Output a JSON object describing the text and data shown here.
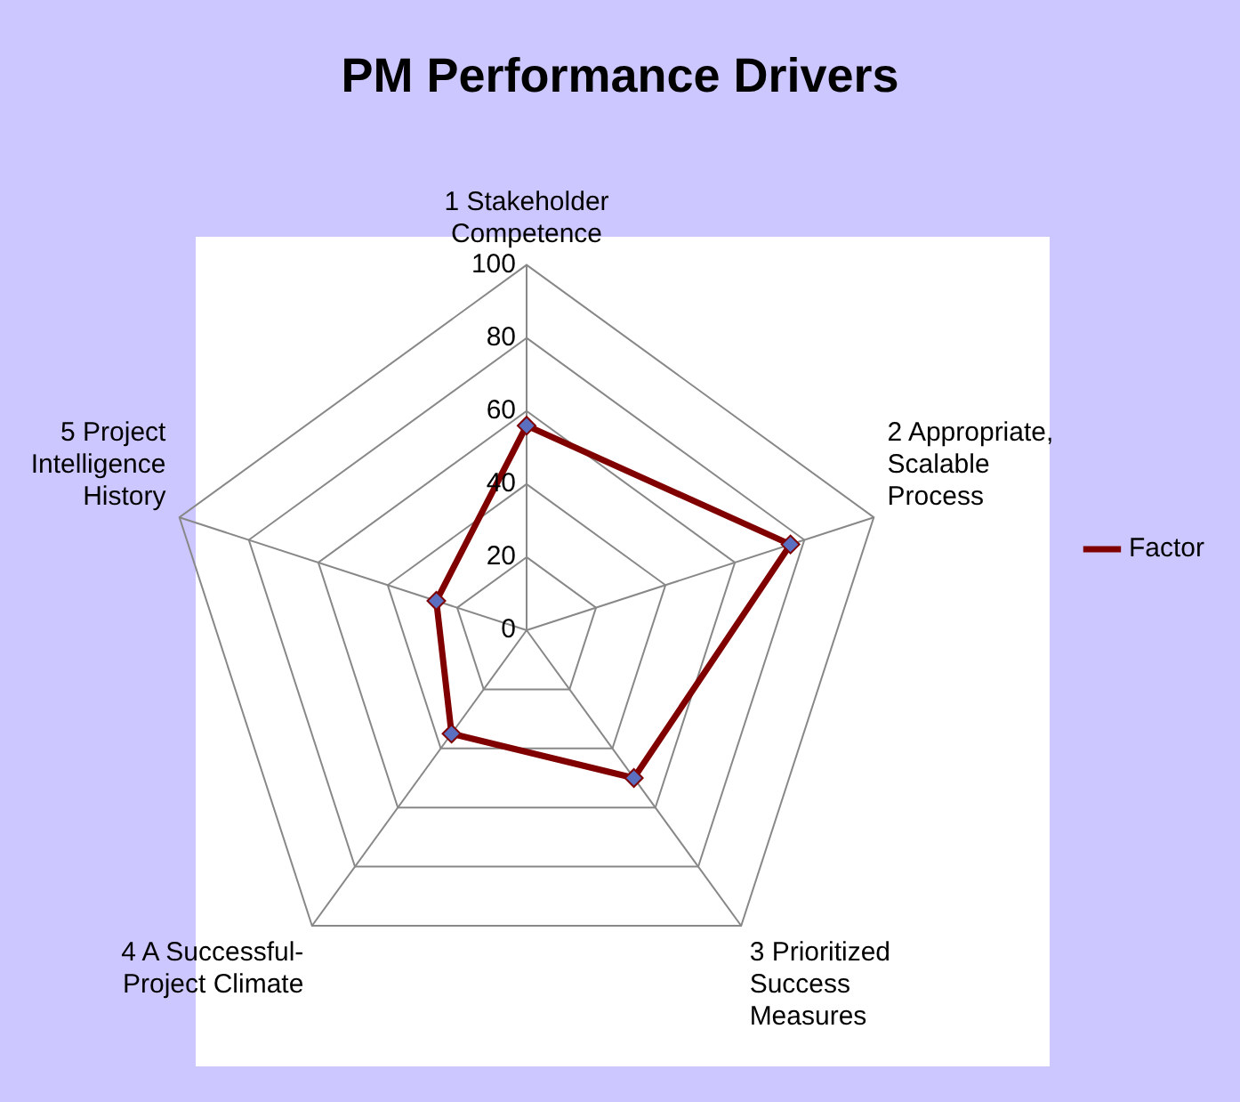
{
  "chart_data": {
    "type": "radar",
    "title": "PM Performance Drivers",
    "categories": [
      "1 Stakeholder\nCompetence",
      "2 Appropriate,\nScalable\nProcess",
      "3 Prioritized\nSuccess\nMeasures",
      "4 A Successful-\nProject Climate",
      "5 Project\nIntelligence\nHistory"
    ],
    "series": [
      {
        "name": "Factor",
        "color": "#800000",
        "values": [
          56,
          76,
          50,
          35,
          26
        ]
      }
    ],
    "ylim": [
      0,
      100
    ],
    "yticks": [
      0,
      20,
      40,
      60,
      80,
      100
    ],
    "grid": true,
    "legend": "right",
    "marker": "diamond",
    "line_style": "solid"
  }
}
